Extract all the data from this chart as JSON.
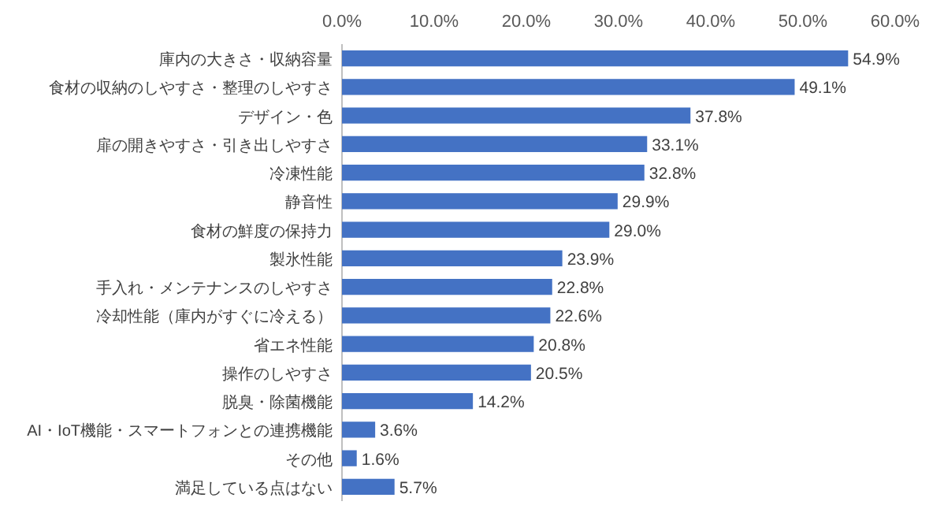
{
  "chart_data": {
    "type": "bar",
    "orientation": "horizontal",
    "categories": [
      "庫内の大きさ・収納容量",
      "食材の収納のしやすさ・整理のしやすさ",
      "デザイン・色",
      "扉の開きやすさ・引き出しやすさ",
      "冷凍性能",
      "静音性",
      "食材の鮮度の保持力",
      "製氷性能",
      "手入れ・メンテナンスのしやすさ",
      "冷却性能（庫内がすぐに冷える）",
      "省エネ性能",
      "操作のしやすさ",
      "脱臭・除菌機能",
      "AI・IoT機能・スマートフォンとの連携機能",
      "その他",
      "満足している点はない"
    ],
    "values": [
      54.9,
      49.1,
      37.8,
      33.1,
      32.8,
      29.9,
      29.0,
      23.9,
      22.8,
      22.6,
      20.8,
      20.5,
      14.2,
      3.6,
      1.6,
      5.7
    ],
    "value_labels": [
      "54.9%",
      "49.1%",
      "37.8%",
      "33.1%",
      "32.8%",
      "29.9%",
      "29.0%",
      "23.9%",
      "22.8%",
      "22.6%",
      "20.8%",
      "20.5%",
      "14.2%",
      "3.6%",
      "1.6%",
      "5.7%"
    ],
    "color": "#4472c4",
    "xlim": [
      0,
      60
    ],
    "xticks": [
      {
        "value": 0,
        "label": "0.0%"
      },
      {
        "value": 10,
        "label": "10.0%"
      },
      {
        "value": 20,
        "label": "20.0%"
      },
      {
        "value": 30,
        "label": "30.0%"
      },
      {
        "value": 40,
        "label": "40.0%"
      },
      {
        "value": 50,
        "label": "50.0%"
      },
      {
        "value": 60,
        "label": "60.0%"
      }
    ],
    "grid": false
  }
}
